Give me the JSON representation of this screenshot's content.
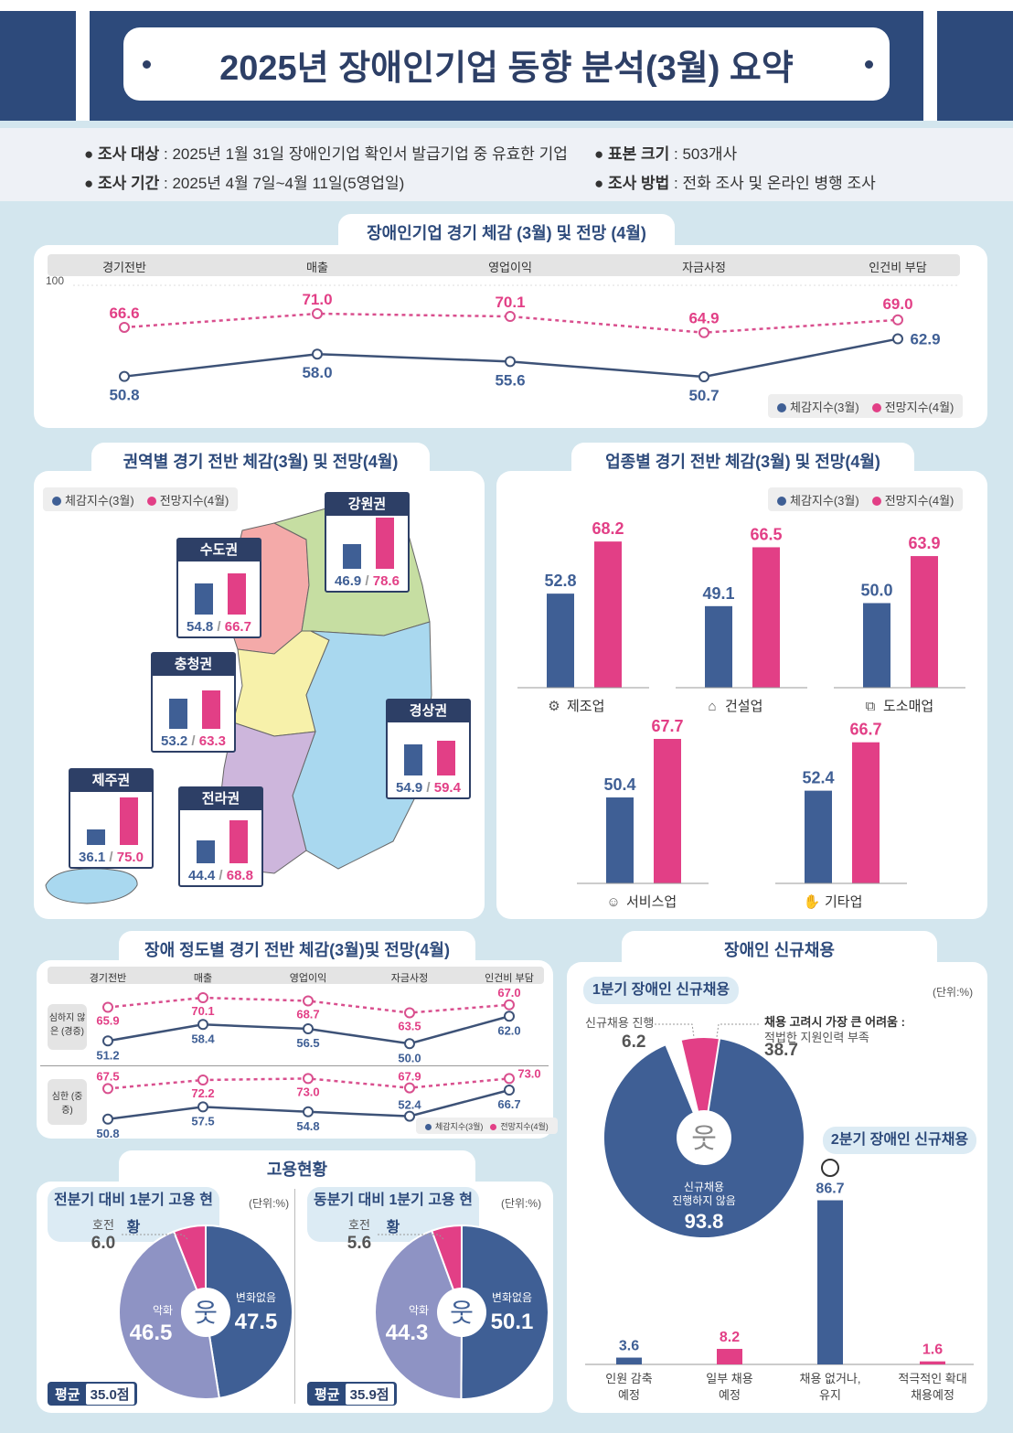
{
  "title": "2025년 장애인기업 동향 분석(3월) 요약",
  "survey": {
    "target_label": "조사 대상",
    "target": ": 2025년 1월 31일 장애인기업 확인서 발급기업 중 유효한 기업",
    "period_label": "조사 기간",
    "period": ": 2025년 4월 7일~4월 11일(5영업일)",
    "sample_label": "표본 크기",
    "sample": ": 503개사",
    "method_label": "조사 방법",
    "method": ":  전화 조사 및 온라인 병행 조사"
  },
  "colors": {
    "navy": "#2d4a7b",
    "blue_series": "#3f5f95",
    "pink_series": "#e23f86",
    "background": "#d3e6ee"
  },
  "legend": {
    "current": "체감지수(3월)",
    "outlook": "전망지수(4월)"
  },
  "chart_data": [
    {
      "type": "line",
      "title": "장애인기업 경기 체감 (3월) 및 전망 (4월)",
      "categories": [
        "경기전반",
        "매출",
        "영업이익",
        "자금사정",
        "인건비 부담"
      ],
      "ytick": "100",
      "series": [
        {
          "name": "체감지수(3월)",
          "values": [
            50.8,
            58.0,
            55.6,
            50.7,
            62.9
          ]
        },
        {
          "name": "전망지수(4월)",
          "values": [
            66.6,
            71.0,
            70.1,
            64.9,
            69.0
          ]
        }
      ]
    },
    {
      "type": "bar",
      "title": "권역별 경기 전반 체감(3월) 및 전망(4월)",
      "categories": [
        "수도권",
        "강원권",
        "충청권",
        "경상권",
        "제주권",
        "전라권"
      ],
      "series": [
        {
          "name": "체감지수(3월)",
          "values": [
            54.8,
            46.9,
            53.2,
            54.9,
            36.1,
            44.4
          ]
        },
        {
          "name": "전망지수(4월)",
          "values": [
            66.7,
            78.6,
            63.3,
            59.4,
            75.0,
            68.8
          ]
        }
      ]
    },
    {
      "type": "bar",
      "title": "업종별 경기 전반 체감(3월) 및 전망(4월)",
      "categories": [
        "제조업",
        "건설업",
        "도소매업",
        "서비스업",
        "기타업"
      ],
      "icons": [
        "gear-icon",
        "house-icon",
        "box-clock-icon",
        "smile-icon",
        "hand-icon"
      ],
      "series": [
        {
          "name": "체감지수(3월)",
          "values": [
            52.8,
            49.1,
            50.0,
            50.4,
            52.4
          ]
        },
        {
          "name": "전망지수(4월)",
          "values": [
            68.2,
            66.5,
            63.9,
            67.7,
            66.7
          ]
        }
      ]
    },
    {
      "type": "line",
      "title": "장애 정도별 경기 전반 체감(3월)및 전망(4월)",
      "categories": [
        "경기전반",
        "매출",
        "영업이익",
        "자금사정",
        "인건비 부담"
      ],
      "groups": [
        {
          "label": "심하지 않은 (경증)",
          "series": [
            {
              "name": "체감지수(3월)",
              "values": [
                51.2,
                58.4,
                56.5,
                50.0,
                62.0
              ]
            },
            {
              "name": "전망지수(4월)",
              "values": [
                65.9,
                70.1,
                68.7,
                63.5,
                67.0
              ]
            }
          ]
        },
        {
          "label": "심한 (중증)",
          "series": [
            {
              "name": "체감지수(3월)",
              "values": [
                50.8,
                57.5,
                54.8,
                52.4,
                66.7
              ]
            },
            {
              "name": "전망지수(4월)",
              "values": [
                67.5,
                72.2,
                73.0,
                67.9,
                73.0
              ]
            }
          ]
        }
      ]
    },
    {
      "type": "pie",
      "section": "고용현황",
      "title": "전분기 대비 1분기 고용 현황",
      "unit": "(단위:%)",
      "slices": [
        {
          "label": "변화없음",
          "value": 47.5,
          "color": "#3f5f95"
        },
        {
          "label": "악화",
          "value": 46.5,
          "color": "#8e93c4"
        },
        {
          "label": "호전",
          "value": 6.0,
          "color": "#e23f86"
        }
      ],
      "avg_label": "평균",
      "avg": "35.0점"
    },
    {
      "type": "pie",
      "title": "동분기 대비 1분기 고용 현황",
      "unit": "(단위:%)",
      "slices": [
        {
          "label": "변화없음",
          "value": 50.1,
          "color": "#3f5f95"
        },
        {
          "label": "악화",
          "value": 44.3,
          "color": "#8e93c4"
        },
        {
          "label": "호전",
          "value": 5.6,
          "color": "#e23f86"
        }
      ],
      "avg_label": "평균",
      "avg": "35.9점"
    },
    {
      "type": "pie",
      "section": "장애인 신규채용",
      "title": "1분기 장애인 신규채용",
      "unit": "(단위:%)",
      "slices": [
        {
          "label": "신규채용 진행하지 않음",
          "value": 93.8,
          "color": "#3f5f95"
        },
        {
          "label": "신규채용 진행",
          "value": 6.2,
          "color": "#e23f86"
        }
      ],
      "note_title": "채용 고려시 가장 큰 어려움 :",
      "note_text": "적법한 지원인력 부족",
      "note_value": "38.7"
    },
    {
      "type": "bar",
      "title": "2분기 장애인 신규채용",
      "categories": [
        "인원 감축 예정",
        "일부 채용 예정",
        "채용 없거나, 유지",
        "적극적인 확대 채용예정"
      ],
      "values": [
        3.6,
        8.2,
        86.7,
        1.6
      ]
    }
  ]
}
